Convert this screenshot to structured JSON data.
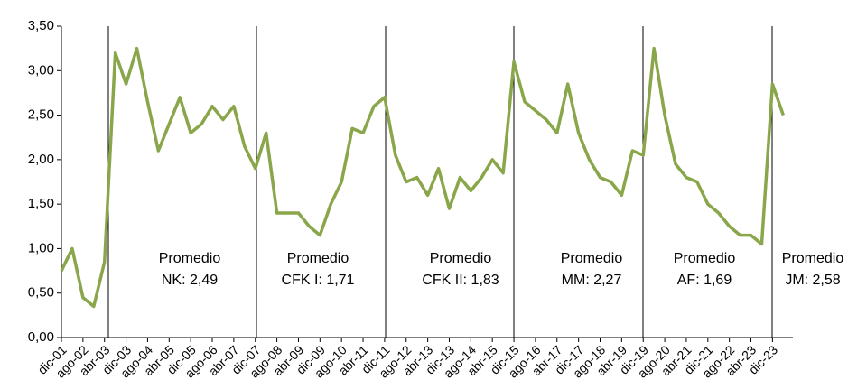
{
  "chart_data": {
    "type": "line",
    "categories": [
      "dic-01",
      null,
      "ago-02",
      null,
      "abr-03",
      null,
      "dic-03",
      null,
      "ago-04",
      null,
      "abr-05",
      null,
      "dic-05",
      null,
      "ago-06",
      null,
      "abr-07",
      null,
      "dic-07",
      null,
      "ago-08",
      null,
      "abr-09",
      null,
      "dic-09",
      null,
      "ago-10",
      null,
      "abr-11",
      null,
      "dic-11",
      null,
      "ago-12",
      null,
      "abr-13",
      null,
      "dic-13",
      null,
      "ago-14",
      null,
      "abr-15",
      null,
      "dic-15",
      null,
      "ago-16",
      null,
      "abr-17",
      null,
      "dic-17",
      null,
      "ago-18",
      null,
      "abr-19",
      null,
      "dic-19",
      null,
      "ago-20",
      null,
      "abr-21",
      null,
      "dic-21",
      null,
      "ago-22",
      null,
      "abr-23",
      null,
      "dic-23",
      null
    ],
    "series": [
      {
        "color": "#8aa64a",
        "values": [
          0.75,
          1.0,
          0.45,
          0.35,
          0.85,
          3.2,
          2.85,
          3.25,
          2.65,
          2.1,
          2.4,
          2.7,
          2.3,
          2.4,
          2.6,
          2.45,
          2.6,
          2.15,
          1.9,
          2.3,
          1.4,
          1.4,
          1.4,
          1.25,
          1.15,
          1.5,
          1.75,
          2.35,
          2.3,
          2.6,
          2.7,
          2.05,
          1.75,
          1.8,
          1.6,
          1.9,
          1.45,
          1.8,
          1.65,
          1.8,
          2.0,
          1.85,
          3.1,
          2.65,
          2.55,
          2.45,
          2.3,
          2.85,
          2.3,
          2.0,
          1.8,
          1.75,
          1.6,
          2.1,
          2.05,
          3.25,
          2.5,
          1.95,
          1.8,
          1.75,
          1.5,
          1.4,
          1.25,
          1.15,
          1.15,
          1.05,
          2.85,
          2.5
        ]
      }
    ],
    "ylim": [
      0,
      3.5
    ],
    "yticks": [
      {
        "value": 0,
        "label": "0,00"
      },
      {
        "value": 0.5,
        "label": "0,50"
      },
      {
        "value": 1,
        "label": "1,00"
      },
      {
        "value": 1.5,
        "label": "1,50"
      },
      {
        "value": 2,
        "label": "2,00"
      },
      {
        "value": 2.5,
        "label": "2,50"
      },
      {
        "value": 3,
        "label": "3,00"
      },
      {
        "value": 3.5,
        "label": "3,50"
      }
    ],
    "annotations": [
      [
        "Promedio",
        "NK: 2,49"
      ],
      [
        "Promedio",
        "CFK I: 1,71"
      ],
      [
        "Promedio",
        "CFK II: 1,83"
      ],
      [
        "Promedio",
        "MM: 2,27"
      ],
      [
        "Promedio",
        "AF: 1,69"
      ],
      [
        "Promedio",
        "JM: 2,58"
      ]
    ]
  }
}
